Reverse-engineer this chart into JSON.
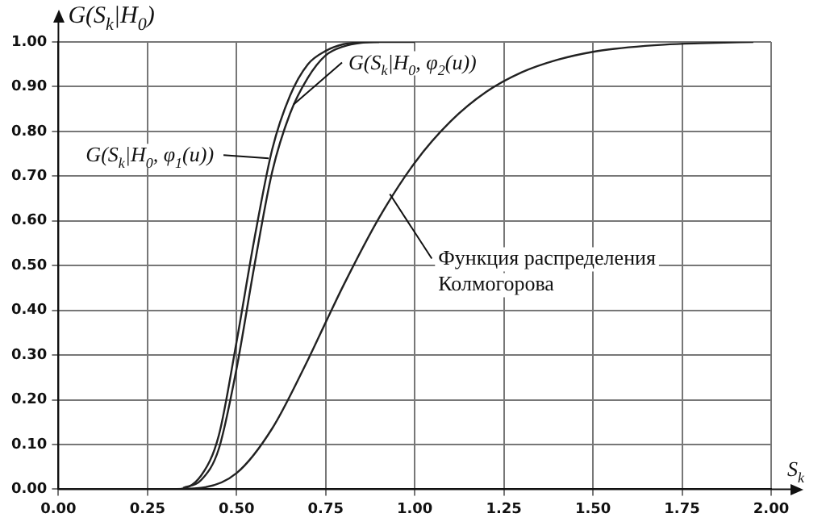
{
  "chart_data": {
    "type": "line",
    "xlabel": "S$_{k}$",
    "ylabel": "G(S$_{k}$|H$_{0}$)",
    "series": [
      {
        "color": "#222222",
        "x": [
          0,
          0.33,
          0.4,
          0.45,
          0.5,
          0.55,
          0.6,
          0.65,
          0.7,
          0.75,
          0.8,
          0.85,
          0.9
        ],
        "values": [
          0,
          0,
          0.03,
          0.12,
          0.33,
          0.56,
          0.76,
          0.88,
          0.95,
          0.98,
          0.995,
          0.999,
          1
        ]
      },
      {
        "color": "#222222",
        "x": [
          0.35,
          0.4,
          0.45,
          0.5,
          0.55,
          0.6,
          0.65,
          0.7,
          0.75,
          0.8,
          0.85,
          0.9,
          1.0
        ],
        "values": [
          0.003,
          0.02,
          0.09,
          0.27,
          0.5,
          0.71,
          0.84,
          0.92,
          0.97,
          0.99,
          0.998,
          1,
          1
        ]
      },
      {
        "color": "#222222",
        "x": [
          0,
          0.3,
          0.4,
          0.5,
          0.6,
          0.7,
          0.75,
          0.8,
          0.9,
          1.0,
          1.1,
          1.2,
          1.3,
          1.4,
          1.5,
          1.6,
          1.7,
          1.8,
          1.95
        ],
        "values": [
          0,
          0,
          0.003,
          0.036,
          0.136,
          0.289,
          0.373,
          0.456,
          0.607,
          0.73,
          0.822,
          0.888,
          0.932,
          0.96,
          0.978,
          0.988,
          0.994,
          0.997,
          1
        ]
      }
    ],
    "annotations": [
      {
        "text": "G(S$_{k}$|H$_{0}$, φ$_{2}$(u))",
        "x": 0.66,
        "y": 0.86
      },
      {
        "text": "G(S$_{k}$|H$_{0}$, φ$_{1}$(u))",
        "x": 0.59,
        "y": 0.74
      },
      {
        "text": "Функция распределения\nКолмогорова",
        "x": 0.93,
        "y": 0.66
      }
    ],
    "xlim": [
      0,
      2
    ],
    "ylim": [
      0,
      1
    ],
    "xticks": [
      {
        "value": 0,
        "label": "0.00"
      },
      {
        "value": 0.25,
        "label": "0.25"
      },
      {
        "value": 0.5,
        "label": "0.50"
      },
      {
        "value": 0.75,
        "label": "0.75"
      },
      {
        "value": 1,
        "label": "1.00"
      },
      {
        "value": 1.25,
        "label": "1.25"
      },
      {
        "value": 1.5,
        "label": "1.50"
      },
      {
        "value": 1.75,
        "label": "1.75"
      },
      {
        "value": 2,
        "label": "2.00"
      }
    ],
    "yticks": [
      {
        "value": 0,
        "label": "0.00"
      },
      {
        "value": 0.1,
        "label": "0.10"
      },
      {
        "value": 0.2,
        "label": "0.20"
      },
      {
        "value": 0.3,
        "label": "0.30"
      },
      {
        "value": 0.4,
        "label": "0.40"
      },
      {
        "value": 0.5,
        "label": "0.50"
      },
      {
        "value": 0.6,
        "label": "0.60"
      },
      {
        "value": 0.7,
        "label": "0.70"
      },
      {
        "value": 0.8,
        "label": "0.80"
      },
      {
        "value": 0.9,
        "label": "0.90"
      },
      {
        "value": 1,
        "label": "1.00"
      }
    ],
    "grid": true,
    "legend": false,
    "marker": "none",
    "line_style": "solid"
  }
}
